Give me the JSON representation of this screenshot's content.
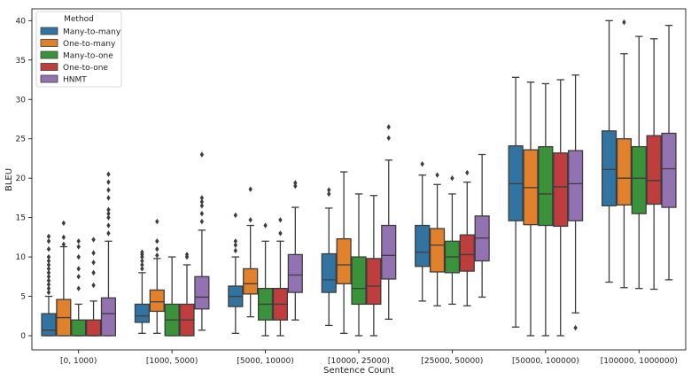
{
  "chart_data": {
    "type": "boxplot",
    "xlabel": "Sentence Count",
    "ylabel": "BLEU",
    "ylim": [
      -1.8,
      41.5
    ],
    "yticks": [
      0,
      5,
      10,
      15,
      20,
      25,
      30,
      35,
      40
    ],
    "categories": [
      "[0, 1000)",
      "[1000, 5000)",
      "[5000, 10000)",
      "[10000, 25000)",
      "[25000, 50000)",
      "[50000, 100000)",
      "[100000, 1000000)"
    ],
    "legend": {
      "title": "Method",
      "placement": "top-left"
    },
    "series": [
      {
        "name": "Many-to-many",
        "color": "#3274a1",
        "boxes": [
          {
            "whislo": 0,
            "q1": 0,
            "med": 0.7,
            "q3": 2.8,
            "whishi": 5.0,
            "fliers": [
              5.5,
              6.0,
              6.5,
              7.0,
              7.5,
              8.0,
              8.5,
              9.0,
              9.5,
              10.0,
              11.0,
              12.0,
              12.6
            ]
          },
          {
            "whislo": 0.3,
            "q1": 1.7,
            "med": 2.5,
            "q3": 4.0,
            "whishi": 8.0,
            "fliers": [
              8.5,
              9.0,
              9.5,
              10.0,
              10.3,
              10.6
            ]
          },
          {
            "whislo": 0.3,
            "q1": 3.7,
            "med": 5.0,
            "q3": 6.3,
            "whishi": 10.0,
            "fliers": [
              10.8,
              11.5,
              12.0,
              15.3
            ]
          },
          {
            "whislo": 1.3,
            "q1": 5.5,
            "med": 7.1,
            "q3": 10.4,
            "whishi": 16.2,
            "fliers": [
              18.0,
              18.5
            ]
          },
          {
            "whislo": 4.4,
            "q1": 8.8,
            "med": 10.6,
            "q3": 14.0,
            "whishi": 20.4,
            "fliers": [
              21.8
            ]
          },
          {
            "whislo": 1.1,
            "q1": 14.6,
            "med": 19.3,
            "q3": 24.1,
            "whishi": 32.8,
            "fliers": []
          },
          {
            "whislo": 6.8,
            "q1": 16.5,
            "med": 21.1,
            "q3": 26.0,
            "whishi": 40.0,
            "fliers": []
          }
        ]
      },
      {
        "name": "One-to-many",
        "color": "#e1812c",
        "boxes": [
          {
            "whislo": 0,
            "q1": 0,
            "med": 2.3,
            "q3": 4.6,
            "whishi": 11.3,
            "fliers": [
              11.6,
              12.5,
              14.3
            ]
          },
          {
            "whislo": 0.3,
            "q1": 3.1,
            "med": 4.3,
            "q3": 5.8,
            "whishi": 9.8,
            "fliers": [
              10.2,
              11.0,
              12.0,
              14.5
            ]
          },
          {
            "whislo": 2.4,
            "q1": 5.3,
            "med": 6.6,
            "q3": 8.5,
            "whishi": 14.0,
            "fliers": [
              14.7,
              18.6
            ]
          },
          {
            "whislo": 0.3,
            "q1": 6.6,
            "med": 9.0,
            "q3": 12.3,
            "whishi": 20.8,
            "fliers": []
          },
          {
            "whislo": 3.8,
            "q1": 8.1,
            "med": 11.5,
            "q3": 13.6,
            "whishi": 19.2,
            "fliers": [
              20.4
            ]
          },
          {
            "whislo": 0,
            "q1": 14.1,
            "med": 18.8,
            "q3": 23.6,
            "whishi": 32.2,
            "fliers": []
          },
          {
            "whislo": 6.1,
            "q1": 16.6,
            "med": 20.0,
            "q3": 25.0,
            "whishi": 35.8,
            "fliers": [
              39.8
            ]
          }
        ]
      },
      {
        "name": "Many-to-one",
        "color": "#3a923a",
        "boxes": [
          {
            "whislo": 0,
            "q1": 0,
            "med": 0,
            "q3": 2.0,
            "whishi": 4.0,
            "fliers": [
              6.0,
              7.5,
              8.5,
              10.0,
              11.3,
              12.0
            ]
          },
          {
            "whislo": 0,
            "q1": 0,
            "med": 2.0,
            "q3": 4.0,
            "whishi": 10.0,
            "fliers": []
          },
          {
            "whislo": 0,
            "q1": 2.0,
            "med": 4.0,
            "q3": 6.0,
            "whishi": 12.0,
            "fliers": [
              14.0
            ]
          },
          {
            "whislo": 0,
            "q1": 4.0,
            "med": 6.0,
            "q3": 10.0,
            "whishi": 18.0,
            "fliers": []
          },
          {
            "whislo": 4.0,
            "q1": 8.0,
            "med": 10.0,
            "q3": 12.0,
            "whishi": 18.0,
            "fliers": [
              20.0
            ]
          },
          {
            "whislo": 0,
            "q1": 14.0,
            "med": 18.0,
            "q3": 24.0,
            "whishi": 32.0,
            "fliers": []
          },
          {
            "whislo": 6.0,
            "q1": 15.5,
            "med": 20.0,
            "q3": 24.0,
            "whishi": 38.0,
            "fliers": []
          }
        ]
      },
      {
        "name": "One-to-one",
        "color": "#c03d3e",
        "boxes": [
          {
            "whislo": 0,
            "q1": 0,
            "med": 0,
            "q3": 2.0,
            "whishi": 4.4,
            "fliers": [
              6.4,
              8.0,
              9.3,
              10.5,
              12.2
            ]
          },
          {
            "whislo": 0,
            "q1": 0,
            "med": 2.0,
            "q3": 4.0,
            "whishi": 9.0,
            "fliers": [
              10.0,
              10.3
            ]
          },
          {
            "whislo": 0,
            "q1": 2.0,
            "med": 4.0,
            "q3": 6.0,
            "whishi": 12.0,
            "fliers": [
              13.0,
              14.7
            ]
          },
          {
            "whislo": 0,
            "q1": 4.0,
            "med": 6.3,
            "q3": 9.8,
            "whishi": 17.8,
            "fliers": []
          },
          {
            "whislo": 3.8,
            "q1": 8.2,
            "med": 10.3,
            "q3": 12.8,
            "whishi": 19.5,
            "fliers": [
              20.7
            ]
          },
          {
            "whislo": 0,
            "q1": 13.9,
            "med": 18.9,
            "q3": 23.2,
            "whishi": 32.5,
            "fliers": []
          },
          {
            "whislo": 5.9,
            "q1": 16.7,
            "med": 19.7,
            "q3": 25.4,
            "whishi": 37.7,
            "fliers": []
          }
        ]
      },
      {
        "name": "HNMT",
        "color": "#9372b2",
        "boxes": [
          {
            "whislo": 0,
            "q1": 0,
            "med": 2.8,
            "q3": 4.8,
            "whishi": 12.0,
            "fliers": [
              13.0,
              14.0,
              15.0,
              15.5,
              16.0,
              17.5,
              18.5,
              19.5,
              20.5
            ]
          },
          {
            "whislo": 0.7,
            "q1": 3.4,
            "med": 4.9,
            "q3": 7.5,
            "whishi": 13.4,
            "fliers": [
              14.5,
              15.5,
              16.5,
              17.0,
              17.5,
              23.0
            ]
          },
          {
            "whislo": 2.0,
            "q1": 5.5,
            "med": 7.7,
            "q3": 10.3,
            "whishi": 16.3,
            "fliers": [
              19.0,
              19.4
            ]
          },
          {
            "whislo": 2.1,
            "q1": 7.2,
            "med": 10.2,
            "q3": 14.0,
            "whishi": 22.3,
            "fliers": [
              25.1,
              26.5
            ]
          },
          {
            "whislo": 4.9,
            "q1": 9.5,
            "med": 12.4,
            "q3": 15.2,
            "whishi": 23.0,
            "fliers": []
          },
          {
            "whislo": 2.9,
            "q1": 14.6,
            "med": 19.3,
            "q3": 23.5,
            "whishi": 33.1,
            "fliers": [
              1.0
            ]
          },
          {
            "whislo": 7.1,
            "q1": 16.3,
            "med": 21.2,
            "q3": 25.7,
            "whishi": 39.4,
            "fliers": []
          }
        ]
      }
    ]
  }
}
